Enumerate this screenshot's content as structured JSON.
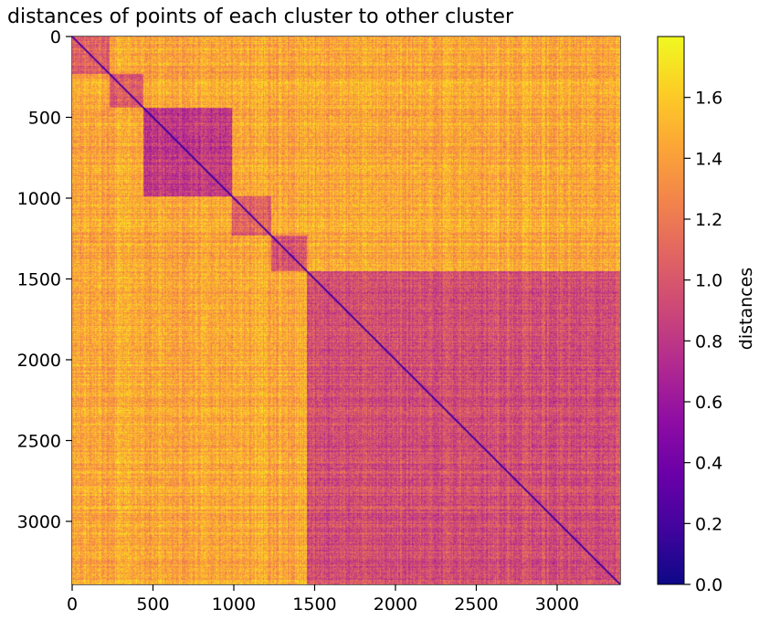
{
  "chart_data": {
    "type": "heatmap",
    "title": "distances of points of each cluster to other cluster",
    "xlabel": "",
    "ylabel": "",
    "xlim": [
      0,
      3390
    ],
    "ylim": [
      3390,
      0
    ],
    "x_ticks": [
      0,
      500,
      1000,
      1500,
      2000,
      2500,
      3000
    ],
    "y_ticks": [
      0,
      500,
      1000,
      1500,
      2000,
      2500,
      3000
    ],
    "x_tick_labels": [
      "0",
      "500",
      "1000",
      "1500",
      "2000",
      "2500",
      "3000"
    ],
    "y_tick_labels": [
      "0",
      "500",
      "1000",
      "1500",
      "2000",
      "2500",
      "3000"
    ],
    "n_points": 3390,
    "colormap": "plasma",
    "cluster_boundaries": [
      0,
      230,
      440,
      990,
      1230,
      1450,
      3390
    ],
    "within_cluster_mean_distance": [
      1.1,
      1.0,
      0.85,
      1.05,
      1.0,
      0.95
    ],
    "between_cluster_mean_distance": 1.45,
    "diagonal_value": 0.0,
    "colorbar": {
      "label": "distances",
      "min": 0.0,
      "max": 1.8,
      "ticks": [
        0.0,
        0.2,
        0.4,
        0.6,
        0.8,
        1.0,
        1.2,
        1.4,
        1.6
      ],
      "tick_labels": [
        "0.0",
        "0.2",
        "0.4",
        "0.6",
        "0.8",
        "1.0",
        "1.2",
        "1.4",
        "1.6"
      ]
    }
  }
}
